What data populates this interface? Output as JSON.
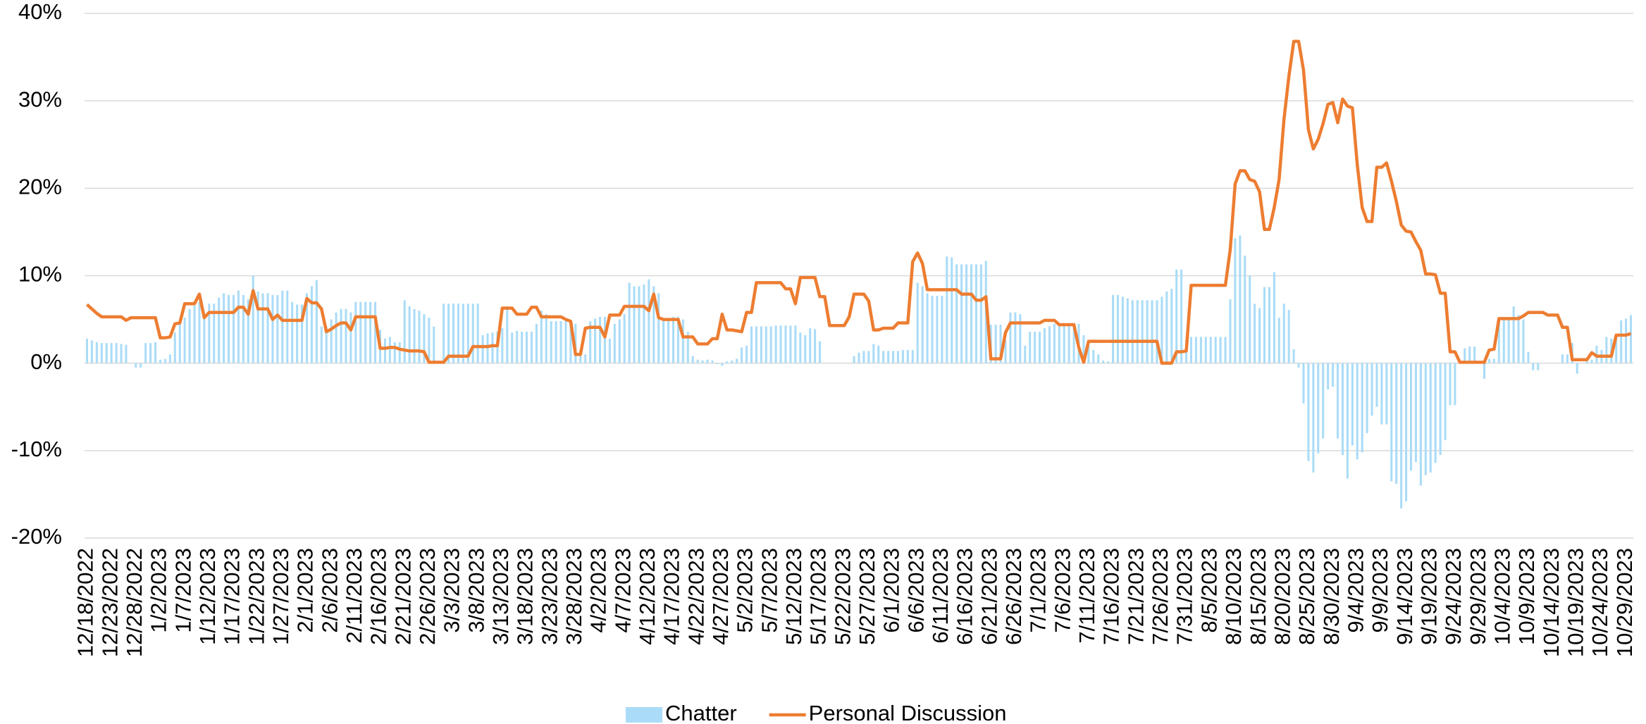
{
  "chart_data": {
    "type": "combo",
    "categories": [
      "12/18/2022",
      null,
      null,
      null,
      null,
      "12/23/2022",
      null,
      null,
      null,
      null,
      "12/28/2022",
      null,
      null,
      null,
      null,
      "1/2/2023",
      null,
      null,
      null,
      null,
      "1/7/2023",
      null,
      null,
      null,
      null,
      "1/12/2023",
      null,
      null,
      null,
      null,
      "1/17/2023",
      null,
      null,
      null,
      null,
      "1/22/2023",
      null,
      null,
      null,
      null,
      "1/27/2023",
      null,
      null,
      null,
      null,
      "2/1/2023",
      null,
      null,
      null,
      null,
      "2/6/2023",
      null,
      null,
      null,
      null,
      "2/11/2023",
      null,
      null,
      null,
      null,
      "2/16/2023",
      null,
      null,
      null,
      null,
      "2/21/2023",
      null,
      null,
      null,
      null,
      "2/26/2023",
      null,
      null,
      null,
      null,
      "3/3/2023",
      null,
      null,
      null,
      null,
      "3/8/2023",
      null,
      null,
      null,
      null,
      "3/13/2023",
      null,
      null,
      null,
      null,
      "3/18/2023",
      null,
      null,
      null,
      null,
      "3/23/2023",
      null,
      null,
      null,
      null,
      "3/28/2023",
      null,
      null,
      null,
      null,
      "4/2/2023",
      null,
      null,
      null,
      null,
      "4/7/2023",
      null,
      null,
      null,
      null,
      "4/12/2023",
      null,
      null,
      null,
      null,
      "4/17/2023",
      null,
      null,
      null,
      null,
      "4/22/2023",
      null,
      null,
      null,
      null,
      "4/27/2023",
      null,
      null,
      null,
      null,
      "5/2/2023",
      null,
      null,
      null,
      null,
      "5/7/2023",
      null,
      null,
      null,
      null,
      "5/12/2023",
      null,
      null,
      null,
      null,
      "5/17/2023",
      null,
      null,
      null,
      null,
      "5/22/2023",
      null,
      null,
      null,
      null,
      "5/27/2023",
      null,
      null,
      null,
      null,
      "6/1/2023",
      null,
      null,
      null,
      null,
      "6/6/2023",
      null,
      null,
      null,
      null,
      "6/11/2023",
      null,
      null,
      null,
      null,
      "6/16/2023",
      null,
      null,
      null,
      null,
      "6/21/2023",
      null,
      null,
      null,
      null,
      "6/26/2023",
      null,
      null,
      null,
      null,
      "7/1/2023",
      null,
      null,
      null,
      null,
      "7/6/2023",
      null,
      null,
      null,
      null,
      "7/11/2023",
      null,
      null,
      null,
      null,
      "7/16/2023",
      null,
      null,
      null,
      null,
      "7/21/2023",
      null,
      null,
      null,
      null,
      "7/26/2023",
      null,
      null,
      null,
      null,
      "7/31/2023",
      null,
      null,
      null,
      null,
      "8/5/2023",
      null,
      null,
      null,
      null,
      "8/10/2023",
      null,
      null,
      null,
      null,
      "8/15/2023",
      null,
      null,
      null,
      null,
      "8/20/2023",
      null,
      null,
      null,
      null,
      "8/25/2023",
      null,
      null,
      null,
      null,
      "8/30/2023",
      null,
      null,
      null,
      null,
      "9/4/2023",
      null,
      null,
      null,
      null,
      "9/9/2023",
      null,
      null,
      null,
      null,
      "9/14/2023",
      null,
      null,
      null,
      null,
      "9/19/2023",
      null,
      null,
      null,
      null,
      "9/24/2023",
      null,
      null,
      null,
      null,
      "9/29/2023",
      null,
      null,
      null,
      null,
      "10/4/2023",
      null,
      null,
      null,
      null,
      "10/9/2023",
      null,
      null,
      null,
      null,
      "10/14/2023",
      null,
      null,
      null,
      null,
      "10/19/2023",
      null,
      null,
      null,
      null,
      "10/24/2023",
      null,
      null,
      null,
      null,
      "10/29/2023",
      null
    ],
    "series": [
      {
        "name": "Chatter",
        "type": "bar",
        "color": "#aadcf7",
        "values": [
          2.8,
          2.6,
          2.4,
          2.3,
          2.3,
          2.3,
          2.3,
          2.2,
          2.1,
          0.0,
          -0.5,
          -0.5,
          2.3,
          2.3,
          2.4,
          0.4,
          0.5,
          1.0,
          3.5,
          4.5,
          5.2,
          6.2,
          6.6,
          7.0,
          5.2,
          6.8,
          6.8,
          7.5,
          8.0,
          7.8,
          7.8,
          8.3,
          7.8,
          7.3,
          10.0,
          8.2,
          8.0,
          8.0,
          7.8,
          7.8,
          8.3,
          8.3,
          7.0,
          6.7,
          6.7,
          8.0,
          8.8,
          9.5,
          4.2,
          4.2,
          5.0,
          5.8,
          6.2,
          6.2,
          5.8,
          7.0,
          7.0,
          7.0,
          7.0,
          7.0,
          3.8,
          2.8,
          3.0,
          2.4,
          2.4,
          7.2,
          6.5,
          6.2,
          6.0,
          5.6,
          5.2,
          4.2,
          0.3,
          6.8,
          6.8,
          6.8,
          6.8,
          6.8,
          6.8,
          6.8,
          6.8,
          3.2,
          3.4,
          3.5,
          3.6,
          4.0,
          6.5,
          3.5,
          3.7,
          3.6,
          3.6,
          3.6,
          4.5,
          6.0,
          5.6,
          4.8,
          4.8,
          4.8,
          4.8,
          4.8,
          4.5,
          0.8,
          1.0,
          4.8,
          5.1,
          5.3,
          5.3,
          2.8,
          4.5,
          5.0,
          5.6,
          9.2,
          8.8,
          8.8,
          9.0,
          9.6,
          8.8,
          8.0,
          5.0,
          5.0,
          5.3,
          5.3,
          5.0,
          3.6,
          0.8,
          0.4,
          0.3,
          0.4,
          0.3,
          -0.1,
          -0.3,
          0.2,
          0.3,
          0.5,
          1.8,
          2.0,
          4.2,
          4.2,
          4.2,
          4.2,
          4.2,
          4.3,
          4.3,
          4.3,
          4.3,
          4.3,
          3.5,
          3.2,
          4.0,
          3.9,
          2.5,
          0.0,
          0.0,
          0.0,
          0.0,
          0.0,
          0.0,
          0.8,
          1.2,
          1.4,
          1.4,
          2.2,
          2.0,
          1.4,
          1.4,
          1.4,
          1.4,
          1.5,
          1.5,
          1.5,
          9.2,
          8.8,
          8.0,
          7.7,
          7.7,
          7.7,
          12.2,
          12.1,
          11.3,
          11.3,
          11.3,
          11.3,
          11.3,
          11.3,
          11.7,
          4.4,
          4.4,
          4.4,
          2.6,
          5.8,
          5.8,
          5.6,
          2.0,
          3.6,
          3.6,
          3.6,
          4.0,
          4.2,
          4.5,
          4.5,
          4.5,
          4.5,
          4.5,
          4.5,
          3.2,
          2.0,
          1.5,
          1.0,
          0.3,
          0.2,
          7.8,
          7.8,
          7.6,
          7.4,
          7.2,
          7.2,
          7.2,
          7.2,
          7.2,
          7.2,
          7.6,
          8.2,
          8.5,
          10.7,
          10.7,
          2.6,
          3.0,
          3.0,
          3.0,
          3.0,
          3.0,
          3.0,
          3.0,
          3.0,
          7.3,
          14.3,
          14.6,
          12.3,
          10.0,
          6.8,
          6.3,
          8.7,
          8.7,
          10.4,
          5.2,
          6.8,
          6.1,
          1.6,
          -0.5,
          -4.6,
          -11.2,
          -12.5,
          -10.3,
          -8.6,
          -3.0,
          -2.7,
          -8.6,
          -10.5,
          -13.2,
          -9.4,
          -11.0,
          -10.2,
          -8.0,
          -6.0,
          -5.0,
          -7.0,
          -7.0,
          -13.5,
          -13.8,
          -16.6,
          -15.8,
          -12.3,
          -11.3,
          -14.0,
          -12.8,
          -12.5,
          -11.4,
          -10.5,
          -8.8,
          -4.8,
          -4.8,
          0.0,
          1.7,
          1.9,
          1.9,
          0.0,
          -1.8,
          0.5,
          0.5,
          5.0,
          5.0,
          5.0,
          6.5,
          5.5,
          5.0,
          1.3,
          -0.8,
          -0.8,
          0.0,
          0.0,
          0.0,
          0.0,
          1.0,
          1.0,
          2.3,
          -1.2,
          0.0,
          0.4,
          0.4,
          2.0,
          1.5,
          3.0,
          2.8,
          2.8,
          4.9,
          5.1,
          5.5
        ]
      },
      {
        "name": "Personal Discussion",
        "type": "line",
        "color": "#ed7d31",
        "values": [
          6.7,
          6.2,
          5.7,
          5.3,
          5.3,
          5.3,
          5.3,
          5.3,
          4.9,
          5.2,
          5.2,
          5.2,
          5.2,
          5.2,
          5.2,
          2.9,
          2.9,
          3.0,
          4.5,
          4.6,
          6.8,
          6.8,
          6.8,
          7.9,
          5.2,
          5.8,
          5.8,
          5.8,
          5.8,
          5.8,
          5.8,
          6.4,
          6.4,
          5.6,
          8.3,
          6.2,
          6.2,
          6.2,
          5.0,
          5.5,
          4.9,
          4.9,
          4.9,
          4.9,
          4.9,
          7.4,
          6.9,
          6.9,
          6.2,
          3.6,
          3.9,
          4.3,
          4.6,
          4.6,
          3.8,
          5.3,
          5.3,
          5.3,
          5.3,
          5.3,
          1.7,
          1.7,
          1.8,
          1.8,
          1.6,
          1.5,
          1.4,
          1.4,
          1.4,
          1.3,
          0.1,
          0.1,
          0.1,
          0.1,
          0.8,
          0.8,
          0.8,
          0.8,
          0.8,
          1.9,
          1.9,
          1.9,
          1.9,
          2.0,
          2.0,
          6.3,
          6.3,
          6.3,
          5.6,
          5.6,
          5.6,
          6.4,
          6.4,
          5.3,
          5.3,
          5.3,
          5.3,
          5.3,
          5.0,
          4.8,
          1.0,
          1.0,
          4.0,
          4.1,
          4.1,
          4.1,
          3.0,
          5.5,
          5.5,
          5.5,
          6.5,
          6.5,
          6.5,
          6.5,
          6.5,
          6.0,
          7.9,
          5.2,
          5.0,
          5.0,
          5.0,
          5.0,
          3.0,
          3.0,
          3.0,
          2.2,
          2.2,
          2.2,
          2.8,
          2.8,
          5.6,
          3.8,
          3.8,
          3.7,
          3.6,
          5.8,
          5.8,
          9.2,
          9.2,
          9.2,
          9.2,
          9.2,
          9.2,
          8.5,
          8.5,
          6.8,
          9.8,
          9.8,
          9.8,
          9.8,
          7.6,
          7.6,
          4.3,
          4.3,
          4.3,
          4.3,
          5.3,
          7.9,
          7.9,
          7.9,
          7.1,
          3.8,
          3.8,
          4.0,
          4.0,
          4.0,
          4.6,
          4.6,
          4.6,
          11.6,
          12.6,
          11.4,
          8.4,
          8.4,
          8.4,
          8.4,
          8.4,
          8.4,
          8.4,
          7.9,
          7.9,
          7.9,
          7.2,
          7.2,
          7.6,
          0.5,
          0.5,
          0.5,
          3.5,
          4.6,
          4.6,
          4.6,
          4.6,
          4.6,
          4.6,
          4.6,
          4.9,
          4.9,
          4.9,
          4.4,
          4.4,
          4.4,
          4.4,
          1.8,
          0.1,
          2.5,
          2.5,
          2.5,
          2.5,
          2.5,
          2.5,
          2.5,
          2.5,
          2.5,
          2.5,
          2.5,
          2.5,
          2.5,
          2.5,
          2.5,
          0.0,
          0.0,
          0.0,
          1.3,
          1.3,
          1.4,
          8.9,
          8.9,
          8.9,
          8.9,
          8.9,
          8.9,
          8.9,
          8.9,
          13.0,
          20.5,
          22.0,
          22.0,
          21.0,
          20.8,
          19.6,
          15.3,
          15.3,
          17.8,
          21.0,
          27.9,
          32.8,
          36.8,
          36.8,
          33.5,
          26.7,
          24.5,
          25.6,
          27.4,
          29.6,
          29.8,
          27.5,
          30.2,
          29.4,
          29.2,
          22.7,
          17.8,
          16.2,
          16.2,
          22.4,
          22.4,
          22.9,
          20.8,
          18.5,
          15.8,
          15.1,
          15.0,
          13.9,
          12.9,
          10.2,
          10.2,
          10.1,
          8.0,
          8.0,
          1.3,
          1.3,
          0.1,
          0.1,
          0.1,
          0.1,
          0.1,
          0.1,
          1.5,
          1.6,
          5.1,
          5.1,
          5.1,
          5.1,
          5.1,
          5.4,
          5.8,
          5.8,
          5.8,
          5.8,
          5.5,
          5.5,
          5.5,
          4.1,
          4.1,
          0.4,
          0.4,
          0.4,
          0.4,
          1.2,
          0.8,
          0.8,
          0.8,
          0.8,
          3.2,
          3.2,
          3.2,
          3.4
        ]
      }
    ],
    "ylim": [
      -20,
      40
    ],
    "yticks": [
      {
        "value": -20,
        "label": "-20%"
      },
      {
        "value": -10,
        "label": "-10%"
      },
      {
        "value": 0,
        "label": "0%"
      },
      {
        "value": 10,
        "label": "10%"
      },
      {
        "value": 20,
        "label": "20%"
      },
      {
        "value": 30,
        "label": "30%"
      },
      {
        "value": 40,
        "label": "40%"
      }
    ],
    "grid": true,
    "legend": "bottom"
  }
}
